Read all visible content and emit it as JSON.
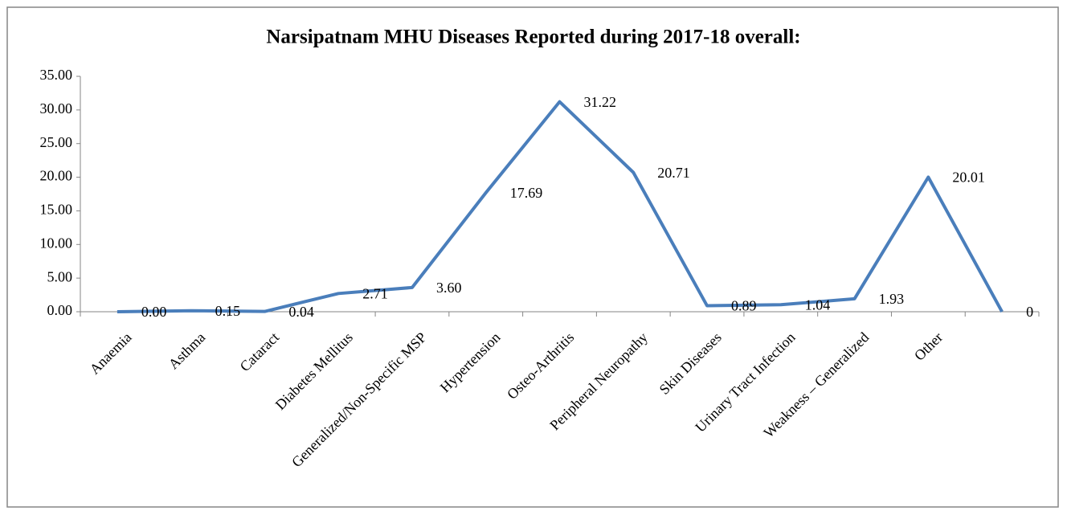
{
  "chart_data": {
    "type": "line",
    "title": "Narsipatnam MHU Diseases Reported during 2017-18 overall:",
    "categories": [
      "Anaemia",
      "Asthma",
      "Cataract",
      "Diabetes Mellitus",
      "Generalized/Non-Specific MSP",
      "Hypertension",
      "Osteo-Arthritis",
      "Peripheral Neuropathy",
      "Skin Diseases",
      "Urinary Tract Infection",
      "Weakness – Generalized",
      "Other",
      null
    ],
    "values": [
      0,
      0.15,
      0.04,
      2.71,
      3.6,
      17.69,
      31.22,
      20.71,
      0.89,
      1.04,
      1.93,
      20.01,
      0
    ],
    "value_labels": [
      "0.00",
      "0.15",
      "0.04",
      "2.71",
      "3.60",
      "17.69",
      "31.22",
      "20.71",
      "0.89",
      "1.04",
      "1.93",
      "20.01",
      "0"
    ],
    "color": "#4a7ebb",
    "ylim": [
      0,
      35
    ],
    "yticks": [
      {
        "value": 0,
        "label": "0.00"
      },
      {
        "value": 5,
        "label": "5.00"
      },
      {
        "value": 10,
        "label": "10.00"
      },
      {
        "value": 15,
        "label": "15.00"
      },
      {
        "value": 20,
        "label": "20.00"
      },
      {
        "value": 25,
        "label": "25.00"
      },
      {
        "value": 30,
        "label": "30.00"
      },
      {
        "value": 35,
        "label": "35.00"
      }
    ],
    "grid": false
  }
}
